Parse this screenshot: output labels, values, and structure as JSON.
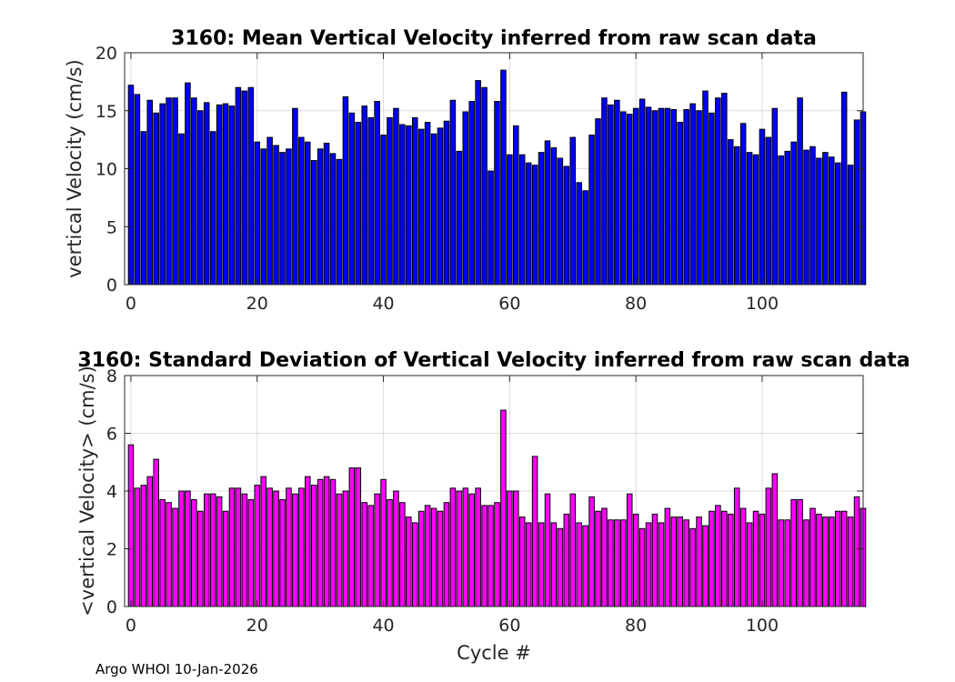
{
  "chart_data": [
    {
      "type": "bar",
      "title": "3160: Mean Vertical Velocity inferred from raw scan data",
      "xlabel": "",
      "ylabel": "vertical Velocity (cm/s)",
      "xlim": [
        -1,
        116
      ],
      "ylim": [
        0,
        20
      ],
      "xticks": [
        0,
        20,
        40,
        60,
        80,
        100
      ],
      "yticks": [
        0,
        5,
        10,
        15,
        20
      ],
      "grid": true,
      "color": "#0000ff",
      "x_start": 0,
      "values": [
        17.2,
        16.4,
        13.2,
        15.9,
        14.8,
        15.6,
        16.1,
        16.1,
        13.0,
        17.4,
        16.1,
        15.0,
        15.7,
        13.2,
        15.5,
        15.6,
        15.4,
        17.0,
        16.7,
        17.0,
        12.3,
        11.7,
        12.7,
        12.0,
        11.4,
        11.7,
        15.2,
        12.7,
        12.3,
        10.7,
        11.7,
        12.2,
        11.3,
        10.8,
        16.2,
        14.8,
        14.0,
        15.4,
        14.4,
        15.8,
        12.9,
        14.4,
        15.2,
        13.8,
        13.7,
        14.4,
        13.4,
        14.0,
        13.0,
        13.5,
        14.1,
        15.9,
        11.5,
        14.9,
        15.8,
        17.6,
        17.0,
        9.8,
        15.8,
        18.5,
        11.2,
        13.7,
        11.2,
        10.5,
        10.3,
        11.4,
        12.4,
        11.8,
        10.9,
        10.2,
        12.7,
        8.8,
        8.1,
        12.9,
        14.3,
        16.1,
        15.5,
        15.9,
        14.9,
        14.7,
        15.2,
        16.0,
        15.3,
        15.0,
        15.2,
        15.2,
        15.1,
        14.0,
        15.1,
        15.6,
        15.0,
        16.7,
        14.8,
        16.1,
        16.5,
        12.5,
        11.9,
        13.9,
        11.4,
        11.2,
        13.4,
        12.7,
        15.2,
        11.1,
        11.5,
        12.3,
        16.1,
        11.6,
        11.9,
        10.9,
        11.4,
        11.0,
        10.5,
        16.6,
        10.3,
        14.2,
        14.9
      ]
    },
    {
      "type": "bar",
      "title": "3160: Standard Deviation of Vertical Velocity inferred from raw scan data",
      "xlabel": "Cycle #",
      "ylabel": "<vertical Velocity> (cm/s)",
      "xlim": [
        -1,
        116
      ],
      "ylim": [
        0,
        8
      ],
      "xticks": [
        0,
        20,
        40,
        60,
        80,
        100
      ],
      "yticks": [
        0,
        2,
        4,
        6,
        8
      ],
      "grid": true,
      "color": "#ff00ff",
      "x_start": 0,
      "values": [
        5.6,
        4.1,
        4.2,
        4.5,
        5.1,
        3.7,
        3.6,
        3.4,
        4.0,
        4.0,
        3.7,
        3.3,
        3.9,
        3.9,
        3.8,
        3.3,
        4.1,
        4.1,
        3.9,
        3.7,
        4.2,
        4.5,
        4.1,
        4.0,
        3.7,
        4.1,
        3.9,
        4.1,
        4.5,
        4.2,
        4.4,
        4.5,
        4.4,
        3.9,
        4.0,
        4.8,
        4.8,
        3.6,
        3.5,
        3.9,
        4.4,
        3.7,
        4.0,
        3.6,
        3.1,
        2.9,
        3.3,
        3.5,
        3.4,
        3.3,
        3.6,
        4.1,
        4.0,
        4.1,
        3.9,
        4.1,
        3.5,
        3.5,
        3.6,
        6.8,
        4.0,
        4.0,
        3.1,
        2.9,
        5.2,
        2.9,
        3.9,
        2.9,
        2.7,
        3.2,
        3.9,
        2.9,
        2.8,
        3.8,
        3.3,
        3.4,
        3.0,
        3.0,
        3.0,
        3.9,
        3.2,
        2.7,
        2.9,
        3.2,
        2.9,
        3.4,
        3.1,
        3.1,
        3.0,
        2.7,
        3.1,
        2.8,
        3.3,
        3.5,
        3.3,
        3.2,
        4.1,
        3.4,
        2.9,
        3.3,
        3.2,
        4.1,
        4.6,
        3.0,
        3.0,
        3.7,
        3.7,
        3.0,
        3.4,
        3.2,
        3.1,
        3.1,
        3.3,
        3.3,
        3.1,
        3.8,
        3.4
      ]
    }
  ],
  "footer": "Argo WHOI 10-Jan-2026"
}
